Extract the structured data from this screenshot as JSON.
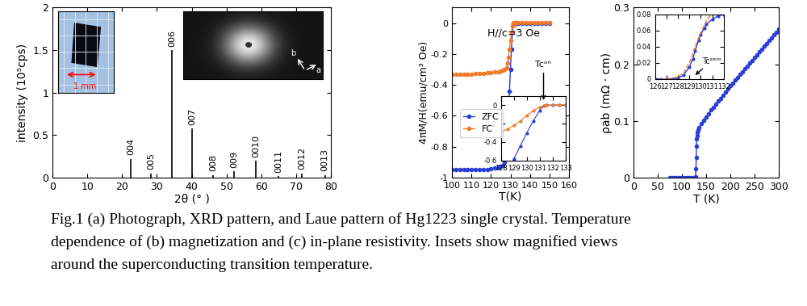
{
  "chart_data": [
    {
      "type": "stem",
      "xlabel": "2θ (° )",
      "ylabel": "intensity (10⁵cps)",
      "xlim": [
        0,
        80
      ],
      "ylim": [
        0,
        2
      ],
      "xticks": [
        0,
        10,
        20,
        30,
        40,
        50,
        60,
        70,
        80
      ],
      "yticks": [
        0,
        0.5,
        1,
        1.5,
        2
      ],
      "x": [
        22.6,
        28.4,
        34.3,
        40.1,
        46.1,
        52.2,
        58.4,
        64.9,
        71.6,
        78.3
      ],
      "values": [
        0.22,
        0.05,
        1.5,
        0.58,
        0.03,
        0.07,
        0.2,
        0.02,
        0.05,
        0.03
      ],
      "labels": [
        "004",
        "005",
        "006",
        "007",
        "008",
        "009",
        "0010",
        "0011",
        "0012",
        "0013"
      ],
      "color": "#000000",
      "scale_label": "1 mm",
      "laue_axis_labels": [
        "b",
        "a"
      ]
    },
    {
      "type": "scatter",
      "xlabel": "T(K)",
      "ylabel": "4πM/H(emu/cm³ Oe)",
      "annotation": "H//c=3 Oe",
      "xlim": [
        100,
        160
      ],
      "ylim": [
        -1,
        0.1
      ],
      "xticks": [
        100,
        110,
        120,
        130,
        140,
        150,
        160
      ],
      "yticks": [
        -1,
        -0.8,
        -0.6,
        -0.4,
        -0.2,
        0
      ],
      "legend": "center left",
      "series": [
        {
          "name": "ZFC",
          "color": "#2b3fd6",
          "marker": "circle",
          "line_style": "solid",
          "x": [
            100,
            102,
            104,
            106,
            108,
            110,
            112,
            114,
            116,
            118,
            120,
            122,
            124,
            125,
            126,
            127,
            128,
            128.5,
            129,
            129.5,
            130,
            130.5,
            131,
            131.3,
            131.5,
            132,
            132.5,
            133,
            134,
            136,
            138,
            140,
            142,
            144,
            146,
            148,
            150
          ],
          "values": [
            -0.95,
            -0.95,
            -0.95,
            -0.95,
            -0.95,
            -0.95,
            -0.95,
            -0.95,
            -0.95,
            -0.948,
            -0.945,
            -0.94,
            -0.935,
            -0.93,
            -0.92,
            -0.9,
            -0.84,
            -0.72,
            -0.58,
            -0.44,
            -0.3,
            -0.17,
            -0.06,
            -0.01,
            0,
            0,
            0,
            0,
            0,
            0,
            0,
            0,
            0,
            0,
            0,
            0,
            0
          ]
        },
        {
          "name": "FC",
          "color": "#f07a2a",
          "marker": "circle",
          "line_style": "solid",
          "x": [
            100,
            102,
            104,
            106,
            108,
            110,
            112,
            114,
            116,
            118,
            120,
            122,
            124,
            125,
            126,
            127,
            128,
            128.5,
            129,
            129.5,
            130,
            130.5,
            131,
            131.3,
            131.5,
            132,
            132.5,
            133,
            134,
            136,
            138,
            140,
            142,
            144,
            146,
            148,
            150
          ],
          "values": [
            -0.33,
            -0.33,
            -0.33,
            -0.33,
            -0.33,
            -0.33,
            -0.328,
            -0.326,
            -0.324,
            -0.322,
            -0.32,
            -0.318,
            -0.314,
            -0.31,
            -0.305,
            -0.3,
            -0.29,
            -0.26,
            -0.22,
            -0.17,
            -0.11,
            -0.06,
            -0.02,
            -0.005,
            0,
            0.005,
            0.005,
            0.005,
            0.005,
            0.005,
            0.005,
            0.005,
            0.005,
            0.005,
            0.005,
            0.005,
            0.005
          ]
        }
      ],
      "inset": {
        "xlim": [
          128,
          133
        ],
        "ylim": [
          -0.6,
          0.1
        ],
        "xticks": [
          128,
          129,
          130,
          131,
          132,
          133
        ],
        "yticks": [
          -0.6,
          -0.4,
          -0.2,
          0
        ],
        "annotation": "Tcᵒⁿ",
        "annotation_x": 131.3
      }
    },
    {
      "type": "line",
      "xlabel": "T (K)",
      "ylabel": "ρab (mΩ · cm)",
      "xlim": [
        0,
        300
      ],
      "ylim": [
        0,
        0.3
      ],
      "xticks": [
        0,
        50,
        100,
        150,
        200,
        250,
        300
      ],
      "yticks": [
        0,
        0.1,
        0.2,
        0.3
      ],
      "series": [
        {
          "color": "#2b3fd6",
          "marker": "circle",
          "line_style": "solid",
          "x": [
            75,
            80,
            85,
            90,
            95,
            100,
            105,
            110,
            115,
            120,
            125,
            128,
            129,
            129.5,
            130,
            130.5,
            131,
            132,
            133,
            135,
            140,
            145,
            150,
            155,
            160,
            165,
            170,
            175,
            180,
            185,
            190,
            195,
            200,
            205,
            210,
            215,
            220,
            225,
            230,
            235,
            240,
            245,
            250,
            255,
            260,
            265,
            270,
            275,
            280,
            285,
            290,
            295,
            300
          ],
          "values": [
            0,
            0,
            0,
            0,
            0,
            0,
            0,
            0,
            0,
            0,
            0,
            0.001,
            0.015,
            0.035,
            0.055,
            0.068,
            0.074,
            0.08,
            0.084,
            0.088,
            0.095,
            0.101,
            0.107,
            0.113,
            0.119,
            0.124,
            0.13,
            0.135,
            0.14,
            0.145,
            0.151,
            0.156,
            0.162,
            0.167,
            0.172,
            0.177,
            0.182,
            0.187,
            0.192,
            0.197,
            0.202,
            0.207,
            0.212,
            0.217,
            0.222,
            0.227,
            0.232,
            0.237,
            0.242,
            0.247,
            0.252,
            0.257,
            0.262
          ]
        }
      ],
      "inset": {
        "xlim": [
          126,
          132
        ],
        "ylim": [
          0,
          0.08
        ],
        "xticks": [
          126,
          127,
          128,
          129,
          130,
          131,
          132
        ],
        "yticks": [
          0,
          0.02,
          0.04,
          0.06,
          0.08
        ],
        "annotation": "Tcᶻᵉʳᵒ",
        "annotation_x": 129.35,
        "series": [
          {
            "color": "#2b3fd6",
            "marker": "circle",
            "line_style": "solid",
            "x": [
              126,
              126.5,
              127,
              127.5,
              128,
              128.5,
              129,
              129.3,
              129.5,
              129.8,
              130,
              130.3,
              130.5,
              131,
              131.5,
              132
            ],
            "values": [
              0,
              0,
              0,
              0,
              0.001,
              0.005,
              0.015,
              0.025,
              0.035,
              0.048,
              0.055,
              0.063,
              0.068,
              0.074,
              0.078,
              0.08
            ]
          },
          {
            "color": "#f07a2a",
            "marker": "none",
            "line_style": "dashed",
            "x": [
              126.5,
              127.5,
              128,
              128.5,
              129,
              129.5,
              130,
              130.5,
              131
            ],
            "values": [
              0,
              0.001,
              0.003,
              0.008,
              0.02,
              0.04,
              0.058,
              0.072,
              0.082
            ]
          }
        ]
      }
    }
  ],
  "caption": [
    "Fig.1 (a) Photograph, XRD pattern, and Laue pattern of Hg1223 single crystal. Temperature",
    "dependence of (b) magnetization and (c) in-plane resistivity. Insets show magnified views",
    "around the superconducting transition temperature."
  ]
}
